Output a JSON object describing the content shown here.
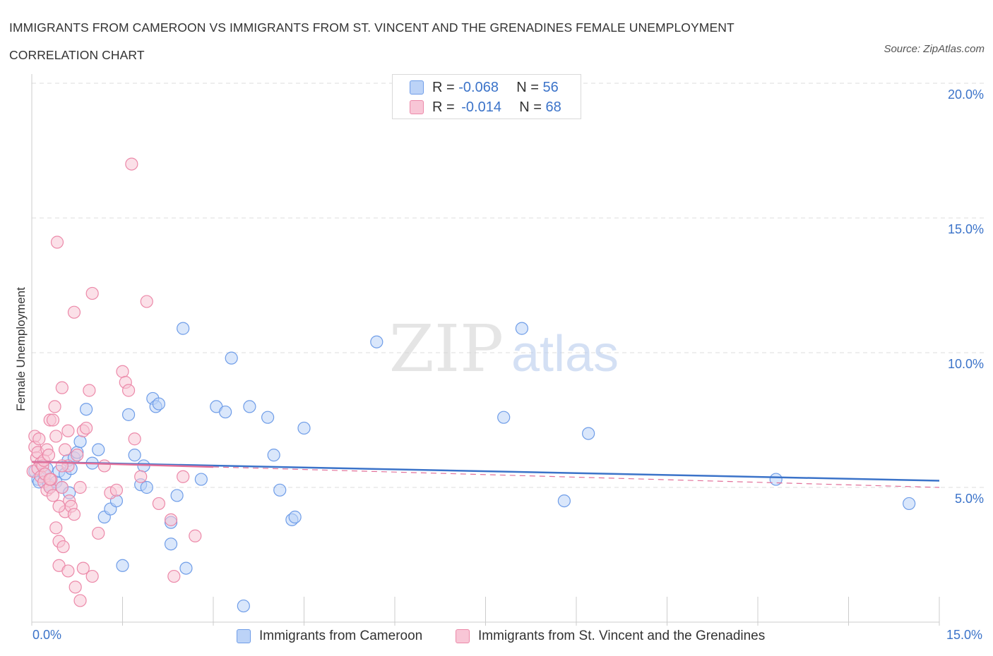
{
  "header": {
    "title": "IMMIGRANTS FROM CAMEROON VS IMMIGRANTS FROM ST. VINCENT AND THE GRENADINES FEMALE UNEMPLOYMENT CORRELATION CHART",
    "source": "Source: ZipAtlas.com"
  },
  "watermark": {
    "zip": "ZIP",
    "atlas": "atlas"
  },
  "stats": {
    "r_label": "R =",
    "n_label": "N =",
    "blue": {
      "r": "-0.068",
      "n": "56"
    },
    "pink": {
      "r": "-0.014",
      "n": "68"
    }
  },
  "legend": {
    "blue": "Immigrants from Cameroon",
    "pink": "Immigrants from St. Vincent and the Grenadines"
  },
  "colors": {
    "blue_fill": "#bcd3f7",
    "blue_stroke": "#6f9de8",
    "blue_line": "#3b73c9",
    "pink_fill": "#f8c6d6",
    "pink_stroke": "#ec89a9",
    "pink_line": "#e2709a",
    "grid": "#dddddd",
    "tick_text": "#3b73c9"
  },
  "chart_data": {
    "type": "scatter",
    "title": "IMMIGRANTS FROM CAMEROON VS IMMIGRANTS FROM ST. VINCENT AND THE GRENADINES FEMALE UNEMPLOYMENT CORRELATION CHART",
    "xlabel": "",
    "ylabel": "Female Unemployment",
    "xlim": [
      0,
      15
    ],
    "ylim": [
      0,
      20
    ],
    "x_tick_labels": [
      "0.0%",
      "15.0%"
    ],
    "y_ticks": [
      5,
      10,
      15,
      20
    ],
    "y_tick_labels": [
      "5.0%",
      "10.0%",
      "15.0%",
      "20.0%"
    ],
    "grid": true,
    "legend_position": "bottom",
    "series": [
      {
        "name": "Immigrants from Cameroon",
        "color": "#6f9de8",
        "x": [
          0.05,
          0.1,
          0.12,
          0.2,
          0.25,
          0.28,
          0.3,
          0.4,
          0.45,
          0.5,
          0.55,
          0.6,
          0.62,
          0.65,
          0.7,
          0.75,
          0.8,
          0.9,
          1.0,
          1.1,
          1.2,
          1.3,
          1.4,
          1.5,
          1.6,
          1.7,
          1.8,
          1.85,
          1.9,
          2.0,
          2.05,
          2.1,
          2.3,
          2.3,
          2.4,
          2.5,
          2.55,
          2.8,
          3.05,
          3.2,
          3.3,
          3.5,
          3.6,
          3.9,
          4.0,
          4.1,
          4.3,
          4.35,
          4.5,
          5.7,
          7.8,
          8.1,
          8.8,
          9.2,
          12.3,
          14.5
        ],
        "y": [
          5.6,
          5.3,
          5.2,
          5.5,
          5.7,
          5.1,
          5.0,
          5.2,
          5.6,
          5.0,
          5.5,
          6.0,
          4.8,
          5.7,
          6.1,
          6.3,
          6.7,
          7.9,
          5.9,
          6.4,
          3.9,
          4.2,
          4.5,
          2.1,
          7.7,
          6.2,
          5.1,
          5.8,
          5.0,
          8.3,
          8.0,
          8.1,
          2.9,
          3.7,
          4.7,
          10.9,
          2.0,
          5.3,
          8.0,
          7.8,
          9.8,
          0.6,
          8.0,
          7.6,
          6.2,
          4.9,
          3.8,
          3.9,
          7.2,
          10.4,
          7.6,
          10.9,
          4.5,
          7.0,
          5.3,
          4.4
        ],
        "trend": {
          "x": [
            0,
            15
          ],
          "y": [
            5.95,
            5.25
          ]
        }
      },
      {
        "name": "Immigrants from St. Vincent and the Grenadines",
        "color": "#ec89a9",
        "x": [
          0.02,
          0.05,
          0.05,
          0.08,
          0.1,
          0.1,
          0.12,
          0.15,
          0.15,
          0.18,
          0.2,
          0.2,
          0.22,
          0.25,
          0.25,
          0.28,
          0.3,
          0.3,
          0.32,
          0.35,
          0.38,
          0.4,
          0.4,
          0.42,
          0.45,
          0.45,
          0.5,
          0.5,
          0.52,
          0.55,
          0.55,
          0.6,
          0.6,
          0.62,
          0.65,
          0.7,
          0.72,
          0.75,
          0.8,
          0.8,
          0.85,
          0.9,
          0.95,
          1.0,
          1.1,
          1.2,
          1.3,
          1.4,
          1.5,
          1.55,
          1.6,
          1.65,
          1.7,
          1.8,
          1.9,
          2.1,
          2.3,
          2.35,
          2.5,
          2.7,
          0.35,
          0.45,
          0.6,
          0.7,
          0.85,
          1.0,
          0.3,
          0.5
        ],
        "y": [
          5.6,
          6.9,
          6.5,
          6.1,
          5.7,
          6.3,
          6.8,
          5.9,
          5.4,
          5.8,
          6.0,
          5.2,
          5.5,
          6.4,
          4.9,
          6.2,
          5.0,
          7.5,
          5.3,
          7.5,
          8.0,
          6.9,
          3.5,
          14.1,
          3.0,
          2.1,
          8.7,
          5.0,
          2.8,
          4.1,
          6.4,
          7.1,
          1.9,
          4.5,
          4.3,
          11.5,
          1.3,
          6.2,
          0.8,
          5.0,
          7.1,
          7.2,
          8.6,
          12.2,
          3.3,
          5.8,
          4.8,
          4.9,
          9.3,
          8.9,
          8.6,
          17.0,
          6.8,
          5.4,
          11.9,
          4.4,
          3.8,
          1.7,
          5.4,
          3.2,
          4.7,
          4.3,
          5.8,
          4.0,
          2.0,
          1.7,
          5.3,
          5.8
        ],
        "trend": {
          "x": [
            0,
            15
          ],
          "y": [
            5.95,
            5.0
          ]
        }
      }
    ]
  }
}
